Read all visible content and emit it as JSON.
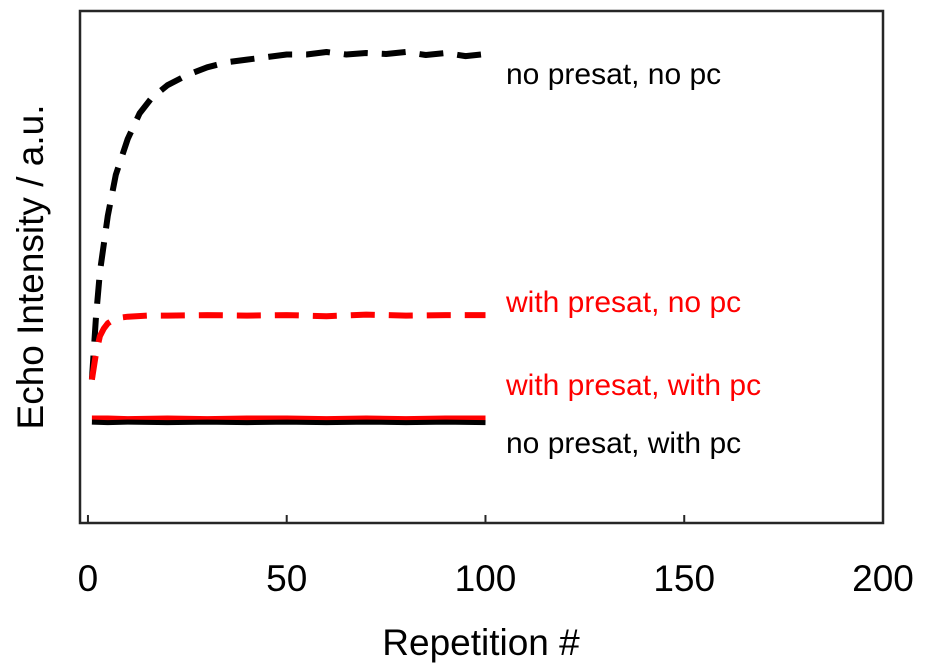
{
  "chart_data": {
    "type": "line",
    "title": "",
    "xlabel": "Repetition #",
    "ylabel": "Echo Intensity / a.u.",
    "xlim": [
      -2,
      200
    ],
    "ylim": [
      0,
      1
    ],
    "xticks": [
      0,
      50,
      100,
      150,
      200
    ],
    "yticks_visible": false,
    "grid": false,
    "legend": "inline labels at right end of each series",
    "colors": {
      "black": "#000000",
      "red": "#ff0000"
    },
    "series": [
      {
        "name": "no presat, no pc",
        "color": "#000000",
        "style": "dashed",
        "x": [
          1,
          2,
          3,
          5,
          7,
          10,
          13,
          16,
          20,
          25,
          30,
          35,
          40,
          45,
          50,
          55,
          60,
          65,
          70,
          75,
          80,
          85,
          90,
          95,
          100
        ],
        "y": [
          0.28,
          0.4,
          0.49,
          0.6,
          0.68,
          0.75,
          0.8,
          0.83,
          0.855,
          0.875,
          0.89,
          0.9,
          0.905,
          0.91,
          0.915,
          0.915,
          0.92,
          0.915,
          0.918,
          0.916,
          0.92,
          0.914,
          0.918,
          0.912,
          0.916
        ]
      },
      {
        "name": "with presat, no pc",
        "color": "#ff0000",
        "style": "dashed",
        "x": [
          1,
          2,
          3,
          4,
          5,
          7,
          10,
          15,
          20,
          30,
          40,
          50,
          60,
          70,
          80,
          90,
          100
        ],
        "y": [
          0.28,
          0.33,
          0.365,
          0.38,
          0.39,
          0.4,
          0.403,
          0.405,
          0.405,
          0.406,
          0.405,
          0.406,
          0.404,
          0.407,
          0.405,
          0.406,
          0.406
        ]
      },
      {
        "name": "with presat, with pc",
        "color": "#ff0000",
        "style": "solid",
        "x": [
          1,
          5,
          10,
          20,
          30,
          40,
          50,
          60,
          70,
          80,
          90,
          100
        ],
        "y": [
          0.205,
          0.205,
          0.204,
          0.205,
          0.204,
          0.205,
          0.205,
          0.204,
          0.205,
          0.204,
          0.205,
          0.205
        ]
      },
      {
        "name": "no presat, with pc",
        "color": "#000000",
        "style": "solid",
        "x": [
          1,
          5,
          10,
          20,
          30,
          40,
          50,
          60,
          70,
          80,
          90,
          100
        ],
        "y": [
          0.197,
          0.196,
          0.197,
          0.196,
          0.197,
          0.196,
          0.197,
          0.196,
          0.197,
          0.196,
          0.197,
          0.196
        ]
      }
    ]
  }
}
